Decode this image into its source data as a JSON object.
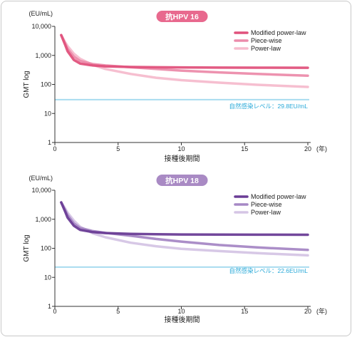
{
  "chart_data": [
    {
      "type": "line",
      "title": "抗HPV 16",
      "title_color": "#e8698e",
      "ylabel": "GMT log",
      "xlabel": "接種後期間",
      "y_unit": "(EU/mL)",
      "x_unit": "(年)",
      "yscale": "log",
      "ylim": [
        1,
        10000
      ],
      "xlim": [
        0,
        20
      ],
      "x_ticks": [
        "0",
        "5",
        "10",
        "15",
        "20"
      ],
      "y_ticks": [
        "1",
        "10",
        "100",
        "1,000",
        "10,000"
      ],
      "grid": false,
      "legend_position": "top-right",
      "reference_line": {
        "value": 29.8,
        "label": "自然感染レベル：29.8EU/mL",
        "color": "#a8dcef"
      },
      "series": [
        {
          "name": "Modified power-law",
          "color": "#e0527c",
          "width": 3.5,
          "x": [
            0.5,
            0.8,
            1.0,
            1.5,
            2.0,
            3.0,
            4.0,
            6.0,
            8.0,
            10.0,
            13.0,
            16.0,
            20.0
          ],
          "y": [
            5000,
            2400,
            1400,
            700,
            520,
            450,
            420,
            400,
            390,
            385,
            380,
            378,
            375
          ]
        },
        {
          "name": "Piece-wise",
          "color": "#ec8cab",
          "width": 3.5,
          "x": [
            0.5,
            0.8,
            1.0,
            1.5,
            2.0,
            3.0,
            4.0,
            6.0,
            8.0,
            10.0,
            13.0,
            16.0,
            20.0
          ],
          "y": [
            5000,
            2600,
            1700,
            900,
            640,
            500,
            450,
            390,
            340,
            300,
            260,
            230,
            200
          ]
        },
        {
          "name": "Power-law",
          "color": "#f6bccd",
          "width": 3.5,
          "x": [
            0.5,
            0.8,
            1.0,
            1.5,
            2.0,
            3.0,
            4.0,
            6.0,
            8.0,
            10.0,
            13.0,
            16.0,
            20.0
          ],
          "y": [
            5000,
            2900,
            2100,
            1150,
            760,
            470,
            340,
            230,
            170,
            140,
            115,
            97,
            82
          ]
        }
      ]
    },
    {
      "type": "line",
      "title": "抗HPV 18",
      "title_color": "#a98ac4",
      "ylabel": "GMT log",
      "xlabel": "接種後期間",
      "y_unit": "(EU/mL)",
      "x_unit": "(年)",
      "yscale": "log",
      "ylim": [
        1,
        10000
      ],
      "xlim": [
        0,
        20
      ],
      "x_ticks": [
        "0",
        "5",
        "10",
        "15",
        "20"
      ],
      "y_ticks": [
        "1",
        "10",
        "100",
        "1,000",
        "10,000"
      ],
      "grid": false,
      "legend_position": "top-right",
      "reference_line": {
        "value": 22.6,
        "label": "自然感染レベル：22.6EU/mL",
        "color": "#a8dcef"
      },
      "series": [
        {
          "name": "Modified power-law",
          "color": "#6a3d96",
          "width": 3.5,
          "x": [
            0.5,
            0.8,
            1.0,
            1.5,
            2.0,
            3.0,
            4.0,
            6.0,
            8.0,
            10.0,
            13.0,
            16.0,
            20.0
          ],
          "y": [
            3800,
            1900,
            1150,
            600,
            430,
            360,
            335,
            315,
            305,
            300,
            296,
            294,
            292
          ]
        },
        {
          "name": "Piece-wise",
          "color": "#a688c5",
          "width": 3.5,
          "x": [
            0.5,
            0.8,
            1.0,
            1.5,
            2.0,
            3.0,
            4.0,
            6.0,
            8.0,
            10.0,
            13.0,
            16.0,
            20.0
          ],
          "y": [
            3800,
            2100,
            1400,
            720,
            500,
            390,
            340,
            270,
            210,
            170,
            130,
            107,
            88
          ]
        },
        {
          "name": "Power-law",
          "color": "#d5c5e5",
          "width": 3.5,
          "x": [
            0.5,
            0.8,
            1.0,
            1.5,
            2.0,
            3.0,
            4.0,
            6.0,
            8.0,
            10.0,
            13.0,
            16.0,
            20.0
          ],
          "y": [
            3800,
            2400,
            1700,
            900,
            550,
            330,
            240,
            155,
            118,
            96,
            80,
            68,
            57
          ]
        }
      ]
    }
  ]
}
